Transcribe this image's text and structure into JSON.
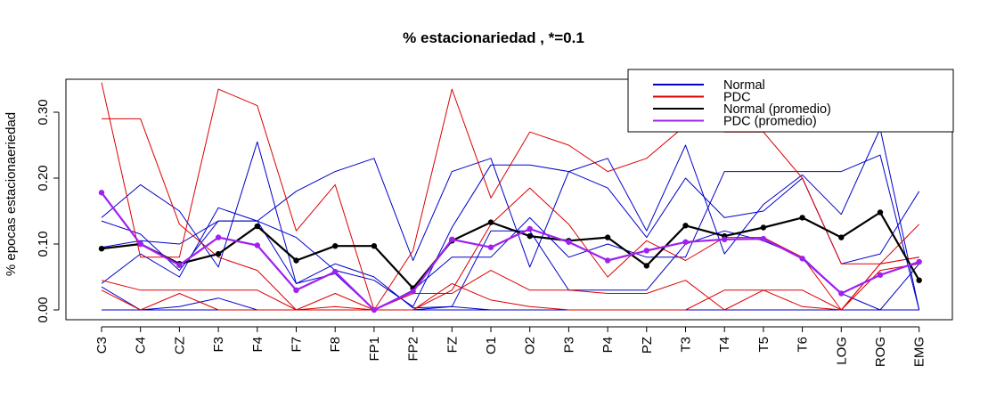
{
  "chart_data": {
    "type": "line",
    "title": "% estacionariedad , *=0.1",
    "ylabel": "% epocas estacionaeriedad",
    "xlabel": "",
    "categories": [
      "C3",
      "C4",
      "CZ",
      "F3",
      "F4",
      "F7",
      "F8",
      "FP1",
      "FP2",
      "FZ",
      "O1",
      "O2",
      "P3",
      "P4",
      "PZ",
      "T3",
      "T4",
      "T5",
      "T6",
      "LOG",
      "ROG",
      "EMG"
    ],
    "ylim": [
      0.0,
      0.35
    ],
    "yticks": [
      "0.00",
      "0.10",
      "0.20",
      "0.30"
    ],
    "ytick_values": [
      0.0,
      0.1,
      0.2,
      0.3
    ],
    "legend_position": "top-right",
    "legend": [
      {
        "label": "Normal",
        "color": "#0000cc"
      },
      {
        "label": "PDC",
        "color": "#dd0000"
      },
      {
        "label": "Normal (promedio)",
        "color": "#000000"
      },
      {
        "label": "PDC (promedio)",
        "color": "#a020f0"
      }
    ],
    "series_normal": [
      {
        "values": [
          0.14,
          0.19,
          0.15,
          0.065,
          0.255,
          0.04,
          0.07,
          0.05,
          0.003,
          0.005,
          0.0,
          0.0,
          0.0,
          0.0,
          0.0,
          0.0,
          0.0,
          0.0,
          0.0,
          0.0,
          0.0,
          0.0
        ]
      },
      {
        "values": [
          0.04,
          0.085,
          0.05,
          0.155,
          0.135,
          0.18,
          0.21,
          0.23,
          0.075,
          0.21,
          0.23,
          0.065,
          0.21,
          0.23,
          0.12,
          0.25,
          0.085,
          0.16,
          0.205,
          0.145,
          0.275,
          0.0
        ]
      },
      {
        "values": [
          0.095,
          0.105,
          0.1,
          0.135,
          0.135,
          0.11,
          0.06,
          0.045,
          0.005,
          0.125,
          0.22,
          0.22,
          0.21,
          0.185,
          0.11,
          0.2,
          0.14,
          0.15,
          0.2,
          0.07,
          0.085,
          0.18
        ]
      },
      {
        "values": [
          0.135,
          0.115,
          0.06,
          0.135,
          0.135,
          0.04,
          0.055,
          0.0,
          0.03,
          0.08,
          0.08,
          0.14,
          0.08,
          0.1,
          0.08,
          0.08,
          0.21,
          0.21,
          0.21,
          0.21,
          0.235,
          0.0
        ]
      },
      {
        "values": [
          0.035,
          0.0,
          0.005,
          0.018,
          0.0,
          0.0,
          0.0,
          0.0,
          0.0,
          0.005,
          0.12,
          0.12,
          0.03,
          0.03,
          0.03,
          0.1,
          0.12,
          0.105,
          0.08,
          0.025,
          0.0,
          0.0
        ]
      },
      {
        "values": [
          0.0,
          0.0,
          0.0,
          0.0,
          0.0,
          0.0,
          0.0,
          0.0,
          0.0,
          0.0,
          0.0,
          0.0,
          0.0,
          0.0,
          0.0,
          0.0,
          0.0,
          0.0,
          0.0,
          0.0,
          0.0,
          0.07
        ]
      }
    ],
    "series_pdc": [
      {
        "values": [
          0.345,
          0.08,
          0.08,
          0.335,
          0.31,
          0.12,
          0.19,
          0.0,
          0.09,
          0.335,
          0.17,
          0.27,
          0.25,
          0.21,
          0.23,
          0.28,
          0.27,
          0.27,
          0.2,
          0.07,
          0.07,
          0.13
        ]
      },
      {
        "values": [
          0.29,
          0.29,
          0.13,
          0.08,
          0.06,
          0.0,
          0.0,
          0.0,
          0.0,
          0.03,
          0.13,
          0.185,
          0.13,
          0.05,
          0.105,
          0.075,
          0.11,
          0.11,
          0.08,
          0.0,
          0.07,
          0.08
        ]
      },
      {
        "values": [
          0.045,
          0.03,
          0.03,
          0.03,
          0.03,
          0.0,
          0.025,
          0.0,
          0.025,
          0.025,
          0.06,
          0.03,
          0.03,
          0.025,
          0.025,
          0.045,
          0.0,
          0.03,
          0.005,
          0.0,
          0.06,
          0.07
        ]
      },
      {
        "values": [
          0.03,
          0.0,
          0.025,
          0.0,
          0.0,
          0.0,
          0.005,
          0.0,
          0.0,
          0.04,
          0.015,
          0.005,
          0.0,
          0.0,
          0.0,
          0.0,
          0.03,
          0.03,
          0.03,
          0.0,
          0.07,
          0.08
        ]
      }
    ],
    "normal_mean": [
      0.093,
      0.1,
      0.07,
      0.085,
      0.127,
      0.075,
      0.097,
      0.097,
      0.033,
      0.105,
      0.133,
      0.112,
      0.105,
      0.11,
      0.067,
      0.128,
      0.112,
      0.125,
      0.14,
      0.11,
      0.148,
      0.045
    ],
    "pdc_mean": [
      0.178,
      0.1,
      0.068,
      0.11,
      0.098,
      0.03,
      0.058,
      0.0,
      0.028,
      0.107,
      0.095,
      0.123,
      0.103,
      0.075,
      0.09,
      0.103,
      0.107,
      0.108,
      0.078,
      0.025,
      0.053,
      0.073
    ]
  }
}
